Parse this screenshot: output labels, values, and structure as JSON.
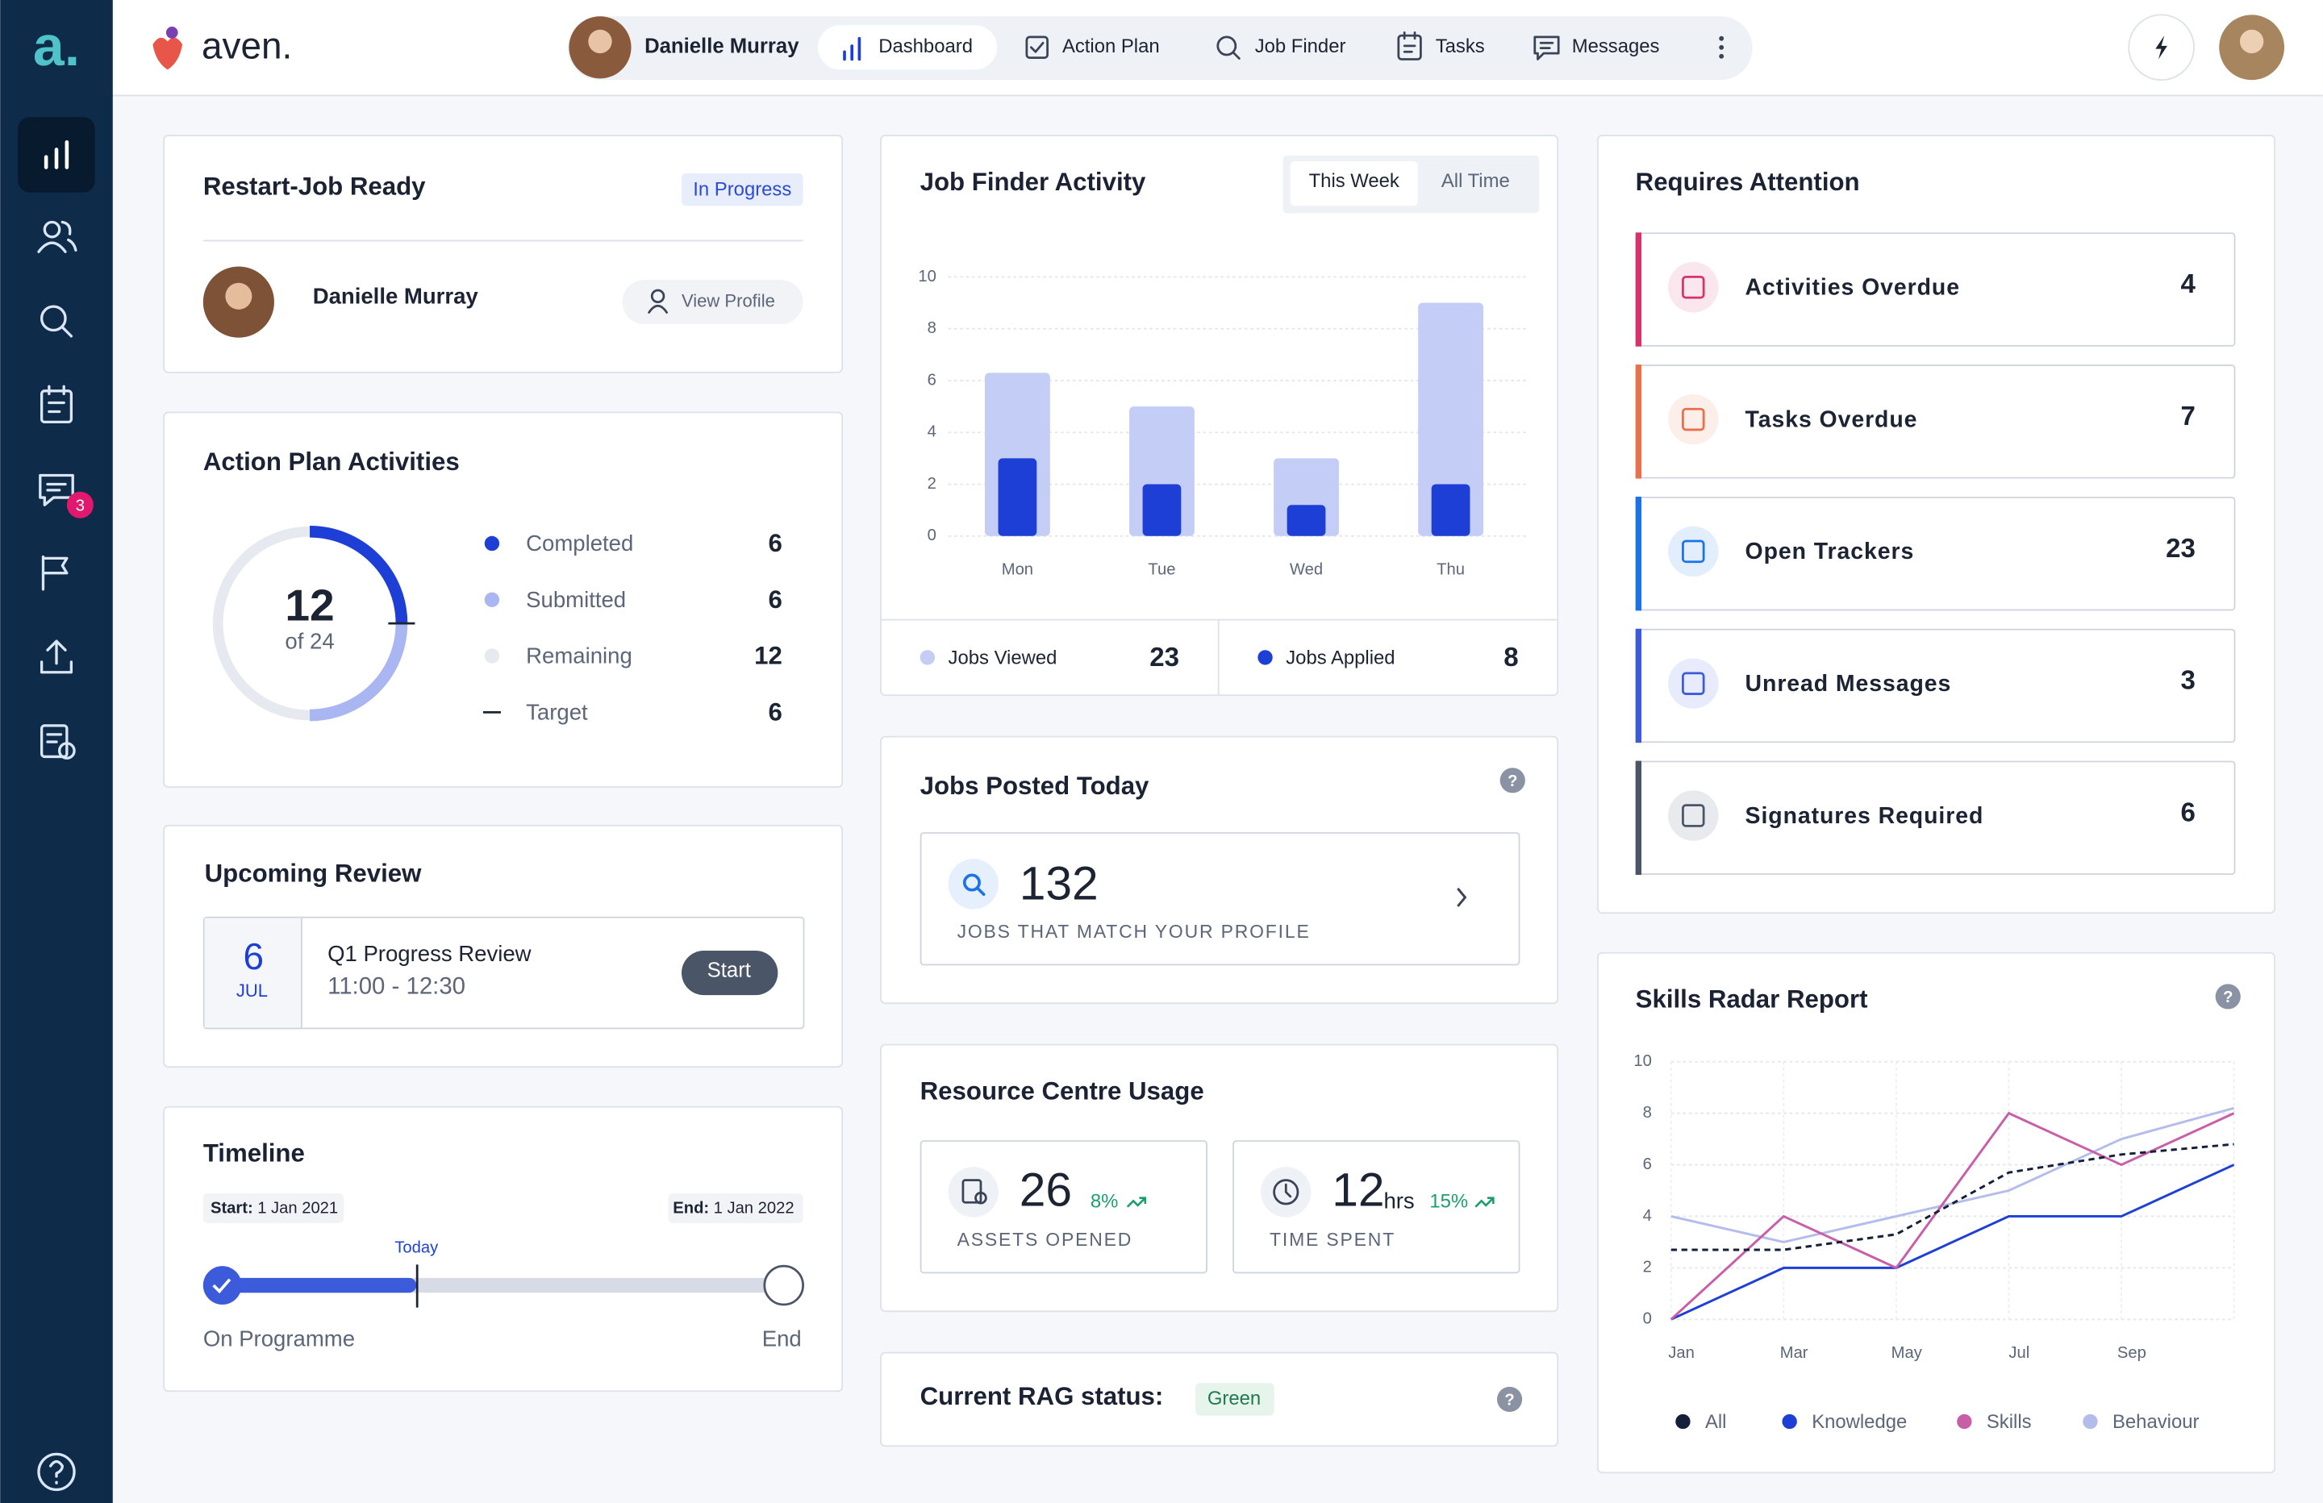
{
  "sidebar": {
    "logo": "a.",
    "messages_badge": 3
  },
  "header": {
    "brand": "aven.",
    "user": "Danielle Murray",
    "nav": [
      "Dashboard",
      "Action Plan",
      "Job Finder",
      "Tasks",
      "Messages"
    ]
  },
  "restart": {
    "title": "Restart-Job Ready",
    "status": "In Progress",
    "name": "Danielle Murray",
    "button": "View Profile"
  },
  "action_plan": {
    "title": "Action Plan Activities",
    "center": 12,
    "center_sub": "of 24",
    "items": [
      {
        "name": "Completed",
        "value": 6,
        "color": "#1d3fd6"
      },
      {
        "name": "Submitted",
        "value": 6,
        "color": "#a9b6f2"
      },
      {
        "name": "Remaining",
        "value": 12,
        "color": "#e6e9ef"
      },
      {
        "name": "Target",
        "value": 6,
        "color": "#1c2434"
      }
    ]
  },
  "upcoming_review": {
    "title": "Upcoming Review",
    "day": 6,
    "month": "JUL",
    "name": "Q1 Progress Review",
    "time": "11:00 - 12:30",
    "button": "Start"
  },
  "timeline": {
    "title": "Timeline",
    "start_label": "Start:",
    "start": "1 Jan 2021",
    "end_label": "End:",
    "end": "1 Jan 2022",
    "today": "Today",
    "left": "On Programme",
    "right": "End"
  },
  "job_finder": {
    "title": "Job Finder Activity",
    "tabs": [
      "This Week",
      "All Time"
    ],
    "type": "bar",
    "categories": [
      "Mon",
      "Tue",
      "Wed",
      "Thu"
    ],
    "series": [
      {
        "name": "Jobs Viewed",
        "color": "#c3cdf5",
        "values": [
          6.3,
          5,
          3,
          9
        ]
      },
      {
        "name": "Jobs Applied",
        "color": "#1d3fd6",
        "values": [
          3,
          2,
          1.2,
          2
        ]
      }
    ],
    "totals": [
      23,
      8
    ],
    "ylim": [
      0,
      10
    ],
    "yticks": [
      0,
      2,
      4,
      6,
      8,
      10
    ],
    "grid": true
  },
  "jobs_posted": {
    "title": "Jobs Posted Today",
    "count": 132,
    "caption": "JOBS THAT MATCH YOUR PROFILE"
  },
  "resource": {
    "title": "Resource Centre Usage",
    "assets": {
      "value": 26,
      "change": "8%",
      "label": "ASSETS OPENED"
    },
    "time": {
      "value": 12,
      "unit": "hrs",
      "change": "15%",
      "label": "TIME SPENT"
    }
  },
  "rag": {
    "title": "Current RAG status:",
    "status": "Green"
  },
  "attention": {
    "title": "Requires Attention",
    "items": [
      {
        "name": "Activities Overdue",
        "value": 4,
        "color": "#d6336c"
      },
      {
        "name": "Tasks Overdue",
        "value": 7,
        "color": "#e8704a"
      },
      {
        "name": "Open Trackers",
        "value": 23,
        "color": "#1a73e8"
      },
      {
        "name": "Unread Messages",
        "value": 3,
        "color": "#3b5bdb"
      },
      {
        "name": "Signatures Required",
        "value": 6,
        "color": "#4a5568"
      }
    ]
  },
  "skills": {
    "title": "Skills Radar Report",
    "type": "line",
    "categories": [
      "Jan",
      "Mar",
      "May",
      "Jul",
      "Sep",
      null
    ],
    "series": [
      {
        "name": "All",
        "color": "#14203a",
        "dashed": true,
        "values": [
          2.7,
          2.7,
          3.3,
          5.7,
          6.4,
          6.8
        ]
      },
      {
        "name": "Knowledge",
        "color": "#1d3fd6",
        "values": [
          0,
          2,
          2,
          4,
          4,
          6
        ]
      },
      {
        "name": "Skills",
        "color": "#c85ea8",
        "values": [
          0,
          4,
          2,
          8,
          6,
          8
        ]
      },
      {
        "name": "Behaviour",
        "color": "#b4bcec",
        "values": [
          4,
          3,
          4,
          5,
          7,
          8.2
        ]
      }
    ],
    "ylim": [
      0,
      10
    ],
    "yticks": [
      0,
      2,
      4,
      6,
      8,
      10
    ],
    "grid": true
  }
}
